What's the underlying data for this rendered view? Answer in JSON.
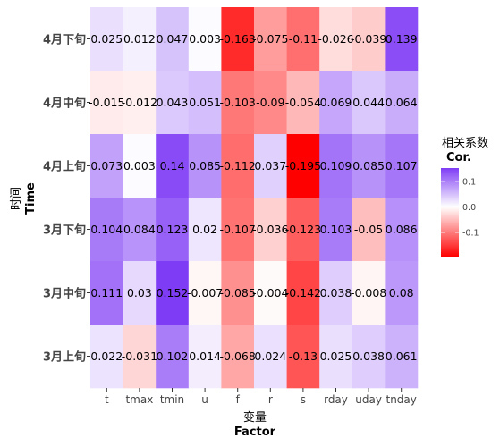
{
  "chart_data": {
    "type": "heatmap",
    "x": [
      "t",
      "tmax",
      "tmin",
      "u",
      "f",
      "r",
      "s",
      "rday",
      "uday",
      "tnday"
    ],
    "y": [
      "4月下旬",
      "4月中旬",
      "4月上旬",
      "3月下旬",
      "3月中旬",
      "3月上旬"
    ],
    "values": [
      [
        0.025,
        0.012,
        0.047,
        0.003,
        -0.163,
        -0.075,
        -0.11,
        -0.026,
        -0.039,
        0.139
      ],
      [
        -0.015,
        -0.012,
        0.043,
        0.051,
        -0.103,
        -0.09,
        -0.054,
        0.069,
        0.044,
        0.064
      ],
      [
        0.073,
        0.003,
        0.14,
        0.085,
        -0.112,
        0.037,
        -0.195,
        0.109,
        0.085,
        0.107
      ],
      [
        0.104,
        0.084,
        0.123,
        0.02,
        -0.107,
        -0.036,
        -0.123,
        0.103,
        -0.05,
        0.086
      ],
      [
        0.111,
        0.03,
        0.152,
        -0.007,
        -0.085,
        -0.004,
        -0.142,
        0.038,
        -0.008,
        0.08
      ],
      [
        0.022,
        -0.031,
        0.102,
        0.014,
        -0.068,
        0.024,
        -0.13,
        0.025,
        0.038,
        0.061
      ]
    ],
    "labels": [
      [
        "0.025",
        "0.012",
        "0.047",
        "0.003",
        "-0.163",
        "-0.075",
        "-0.11",
        "-0.026",
        "-0.039",
        "0.139"
      ],
      [
        "-0.015",
        "-0.012",
        "0.043",
        "0.051",
        "-0.103",
        "-0.09",
        "-0.054",
        "0.069",
        "0.044",
        "0.064"
      ],
      [
        "0.073",
        "0.003",
        "0.14",
        "0.085",
        "-0.112",
        "0.037",
        "-0.195",
        "0.109",
        "0.085",
        "0.107"
      ],
      [
        "0.104",
        "0.084",
        "0.123",
        "0.02",
        "-0.107",
        "-0.036",
        "-0.123",
        "0.103",
        "-0.05",
        "0.086"
      ],
      [
        "0.111",
        "0.03",
        "0.152",
        "-0.007",
        "-0.085",
        "-0.004",
        "-0.142",
        "0.038",
        "-0.008",
        "0.08"
      ],
      [
        "0.022",
        "-0.031",
        "0.102",
        "0.014",
        "-0.068",
        "0.024",
        "-0.13",
        "0.025",
        "0.038",
        "0.061"
      ]
    ],
    "xlabel": "变量",
    "xlabel_en": "Factor",
    "ylabel": "时间",
    "ylabel_en": "Time",
    "legend": {
      "title": "相关系数",
      "title_en": "Cor.",
      "ticks": [
        0.1,
        0.0,
        -0.1
      ],
      "tick_labels": [
        "0.1",
        "0.0",
        "-0.1"
      ],
      "range": [
        -0.195,
        0.152
      ],
      "placement": "right"
    },
    "colors": {
      "low": "#ff0000",
      "mid": "#ffffff",
      "high": "#7f3cf5"
    },
    "grid": false
  }
}
